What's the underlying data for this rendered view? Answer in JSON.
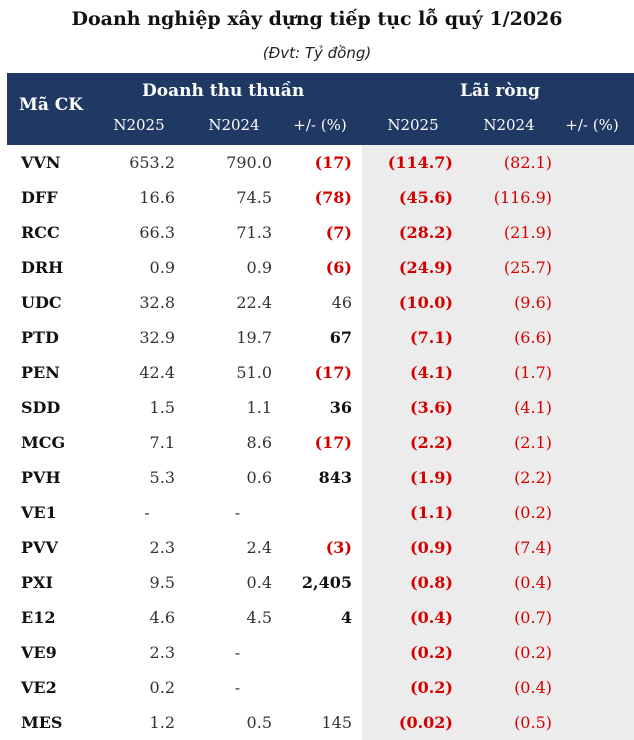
{
  "title": "Doanh nghiệp xây dựng tiếp tục lỗ quý 1/2026",
  "subtitle": "(Đvt: Tỷ đồng)",
  "header": {
    "code": "Mã CK",
    "group_revenue": "Doanh thu thuần",
    "group_profit": "Lãi ròng",
    "rev_n2025": "N2025",
    "rev_n2024": "N2024",
    "rev_pct": "+/- (%)",
    "prof_n2025": "N2025",
    "prof_n2024": "N2024",
    "prof_pct": "+/- (%)"
  },
  "rows": [
    {
      "code": "VVN",
      "rev_2025": "653.2",
      "rev_2024": "790.0",
      "rev_pct": "(17)",
      "pct_neg": true,
      "pct_bold": true,
      "np_2025": "(114.7)",
      "np_2024": "(82.1)"
    },
    {
      "code": "DFF",
      "rev_2025": "16.6",
      "rev_2024": "74.5",
      "rev_pct": "(78)",
      "pct_neg": true,
      "pct_bold": true,
      "np_2025": "(45.6)",
      "np_2024": "(116.9)"
    },
    {
      "code": "RCC",
      "rev_2025": "66.3",
      "rev_2024": "71.3",
      "rev_pct": "(7)",
      "pct_neg": true,
      "pct_bold": true,
      "np_2025": "(28.2)",
      "np_2024": "(21.9)"
    },
    {
      "code": "DRH",
      "rev_2025": "0.9",
      "rev_2024": "0.9",
      "rev_pct": "(6)",
      "pct_neg": true,
      "pct_bold": true,
      "np_2025": "(24.9)",
      "np_2024": "(25.7)"
    },
    {
      "code": "UDC",
      "rev_2025": "32.8",
      "rev_2024": "22.4",
      "rev_pct": "46",
      "pct_neg": false,
      "pct_bold": false,
      "np_2025": "(10.0)",
      "np_2024": "(9.6)"
    },
    {
      "code": "PTD",
      "rev_2025": "32.9",
      "rev_2024": "19.7",
      "rev_pct": "67",
      "pct_neg": false,
      "pct_bold": true,
      "np_2025": "(7.1)",
      "np_2024": "(6.6)"
    },
    {
      "code": "PEN",
      "rev_2025": "42.4",
      "rev_2024": "51.0",
      "rev_pct": "(17)",
      "pct_neg": true,
      "pct_bold": true,
      "np_2025": "(4.1)",
      "np_2024": "(1.7)"
    },
    {
      "code": "SDD",
      "rev_2025": "1.5",
      "rev_2024": "1.1",
      "rev_pct": "36",
      "pct_neg": false,
      "pct_bold": true,
      "np_2025": "(3.6)",
      "np_2024": "(4.1)"
    },
    {
      "code": "MCG",
      "rev_2025": "7.1",
      "rev_2024": "8.6",
      "rev_pct": "(17)",
      "pct_neg": true,
      "pct_bold": true,
      "np_2025": "(2.2)",
      "np_2024": "(2.1)"
    },
    {
      "code": "PVH",
      "rev_2025": "5.3",
      "rev_2024": "0.6",
      "rev_pct": "843",
      "pct_neg": false,
      "pct_bold": true,
      "np_2025": "(1.9)",
      "np_2024": "(2.2)"
    },
    {
      "code": "VE1",
      "rev_2025": "-",
      "rev_2024": "-",
      "rev_pct": "",
      "pct_neg": false,
      "pct_bold": false,
      "np_2025": "(1.1)",
      "np_2024": "(0.2)"
    },
    {
      "code": "PVV",
      "rev_2025": "2.3",
      "rev_2024": "2.4",
      "rev_pct": "(3)",
      "pct_neg": true,
      "pct_bold": true,
      "np_2025": "(0.9)",
      "np_2024": "(7.4)"
    },
    {
      "code": "PXI",
      "rev_2025": "9.5",
      "rev_2024": "0.4",
      "rev_pct": "2,405",
      "pct_neg": false,
      "pct_bold": true,
      "np_2025": "(0.8)",
      "np_2024": "(0.4)"
    },
    {
      "code": "E12",
      "rev_2025": "4.6",
      "rev_2024": "4.5",
      "rev_pct": "4",
      "pct_neg": false,
      "pct_bold": true,
      "np_2025": "(0.4)",
      "np_2024": "(0.7)"
    },
    {
      "code": "VE9",
      "rev_2025": "2.3",
      "rev_2024": "-",
      "rev_pct": "",
      "pct_neg": false,
      "pct_bold": false,
      "np_2025": "(0.2)",
      "np_2024": "(0.2)"
    },
    {
      "code": "VE2",
      "rev_2025": "0.2",
      "rev_2024": "-",
      "rev_pct": "",
      "pct_neg": false,
      "pct_bold": false,
      "np_2025": "(0.2)",
      "np_2024": "(0.4)"
    },
    {
      "code": "MES",
      "rev_2025": "1.2",
      "rev_2024": "0.5",
      "rev_pct": "145",
      "pct_neg": false,
      "pct_bold": false,
      "np_2025": "(0.02)",
      "np_2024": "(0.5)"
    }
  ],
  "colors": {
    "header_bg": "#1f3864",
    "negative": "#d40000",
    "profit_panel_bg": "#ececec"
  }
}
